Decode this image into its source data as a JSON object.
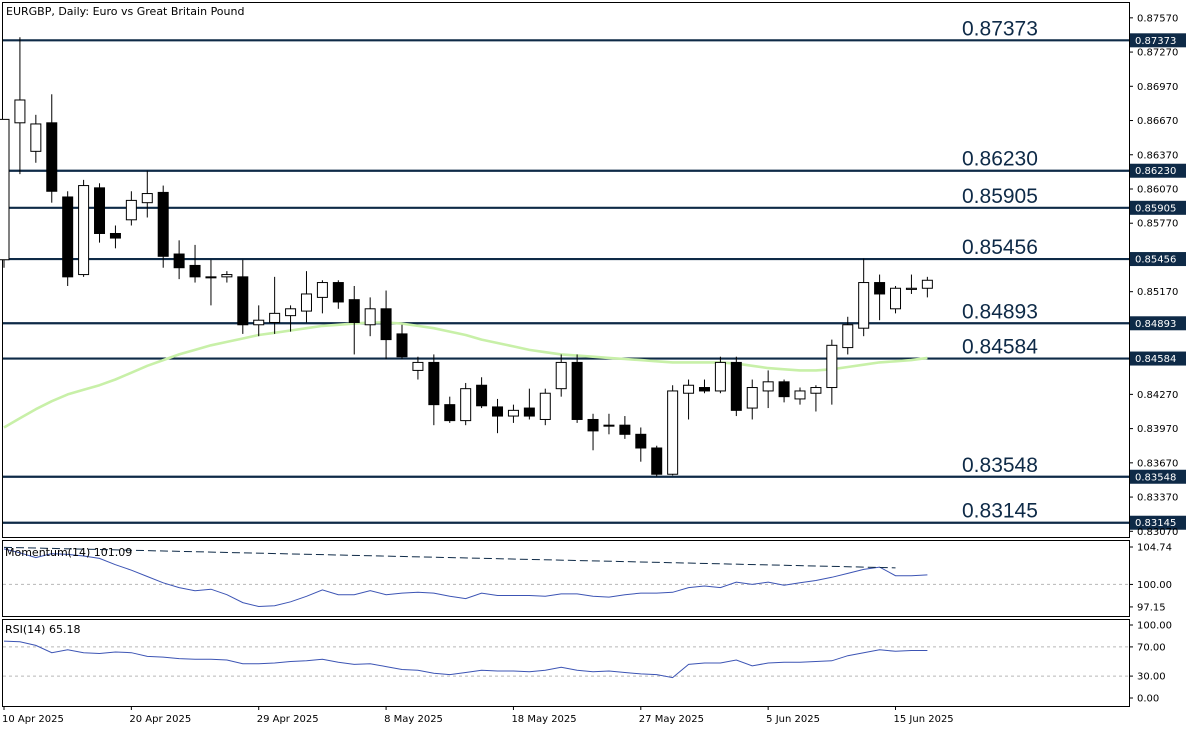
{
  "header": {
    "title": "EURGBP, Daily:  Euro vs Great Britain Pound"
  },
  "colors": {
    "level_line": "#0e2a47",
    "ma_line": "#c8f0a8",
    "indicator_line": "#3c54b4",
    "bull_body": "#ffffff",
    "bear_body": "#000000"
  },
  "price_axis": {
    "ticks": [
      "0.87570",
      "0.87270",
      "0.86970",
      "0.86670",
      "0.86370",
      "0.86070",
      "0.85770",
      "0.85170",
      "0.84270",
      "0.83970",
      "0.83670",
      "0.83370",
      "0.83070"
    ]
  },
  "levels": [
    {
      "value": 0.87373,
      "label": "0.87373",
      "tag": "0.87373"
    },
    {
      "value": 0.8623,
      "label": "0.86230",
      "tag": "0.86230"
    },
    {
      "value": 0.85905,
      "label": "0.85905",
      "tag": "0.85905"
    },
    {
      "value": 0.85456,
      "label": "0.85456",
      "tag": "0.85456"
    },
    {
      "value": 0.84893,
      "label": "0.84893",
      "tag": "0.84893"
    },
    {
      "value": 0.84584,
      "label": "0.84584",
      "tag": "0.84584"
    },
    {
      "value": 0.83548,
      "label": "0.83548",
      "tag": "0.83548"
    },
    {
      "value": 0.83145,
      "label": "0.83145",
      "tag": "0.83145"
    }
  ],
  "momentum": {
    "label": "Momentum(14) 101.09",
    "ticks": [
      "104.74",
      "100.00",
      "97.15"
    ]
  },
  "rsi": {
    "label": "RSI(14) 65.18",
    "ticks": [
      "100.00",
      "70.00",
      "30.00",
      "0.00"
    ]
  },
  "time_axis": {
    "labels": [
      "10 Apr 2025",
      "20 Apr 2025",
      "29 Apr 2025",
      "8 May 2025",
      "18 May 2025",
      "27 May 2025",
      "5 Jun 2025",
      "15 Jun 2025"
    ]
  },
  "chart_data": {
    "type": "candlestick",
    "symbol": "EURGBP",
    "timeframe": "Daily",
    "ylim": [
      0.8301,
      0.8775
    ],
    "candles": [
      {
        "o": 0.8545,
        "h": 0.8668,
        "l": 0.8538,
        "c": 0.8668
      },
      {
        "o": 0.8665,
        "h": 0.874,
        "l": 0.862,
        "c": 0.8685
      },
      {
        "o": 0.864,
        "h": 0.8672,
        "l": 0.863,
        "c": 0.8664
      },
      {
        "o": 0.8665,
        "h": 0.869,
        "l": 0.8595,
        "c": 0.8605
      },
      {
        "o": 0.86,
        "h": 0.8605,
        "l": 0.8522,
        "c": 0.853
      },
      {
        "o": 0.8532,
        "h": 0.8615,
        "l": 0.853,
        "c": 0.861
      },
      {
        "o": 0.8608,
        "h": 0.8612,
        "l": 0.856,
        "c": 0.8568
      },
      {
        "o": 0.8568,
        "h": 0.8575,
        "l": 0.8555,
        "c": 0.8564
      },
      {
        "o": 0.858,
        "h": 0.8605,
        "l": 0.8575,
        "c": 0.8597
      },
      {
        "o": 0.8595,
        "h": 0.8623,
        "l": 0.8582,
        "c": 0.8603
      },
      {
        "o": 0.8604,
        "h": 0.861,
        "l": 0.8538,
        "c": 0.8548
      },
      {
        "o": 0.855,
        "h": 0.8562,
        "l": 0.8528,
        "c": 0.8538
      },
      {
        "o": 0.854,
        "h": 0.8558,
        "l": 0.8525,
        "c": 0.853
      },
      {
        "o": 0.853,
        "h": 0.8545,
        "l": 0.8505,
        "c": 0.853
      },
      {
        "o": 0.853,
        "h": 0.8535,
        "l": 0.8525,
        "c": 0.8532
      },
      {
        "o": 0.853,
        "h": 0.8545,
        "l": 0.848,
        "c": 0.8488
      },
      {
        "o": 0.8488,
        "h": 0.8505,
        "l": 0.8478,
        "c": 0.8492
      },
      {
        "o": 0.849,
        "h": 0.853,
        "l": 0.848,
        "c": 0.8498
      },
      {
        "o": 0.8496,
        "h": 0.8505,
        "l": 0.8482,
        "c": 0.8502
      },
      {
        "o": 0.85,
        "h": 0.8535,
        "l": 0.849,
        "c": 0.8515
      },
      {
        "o": 0.8512,
        "h": 0.8527,
        "l": 0.8498,
        "c": 0.8525
      },
      {
        "o": 0.8525,
        "h": 0.8527,
        "l": 0.8502,
        "c": 0.8508
      },
      {
        "o": 0.851,
        "h": 0.8522,
        "l": 0.8462,
        "c": 0.849
      },
      {
        "o": 0.8488,
        "h": 0.8512,
        "l": 0.8478,
        "c": 0.8502
      },
      {
        "o": 0.8502,
        "h": 0.8518,
        "l": 0.8458,
        "c": 0.8475
      },
      {
        "o": 0.848,
        "h": 0.8488,
        "l": 0.8458,
        "c": 0.846
      },
      {
        "o": 0.8448,
        "h": 0.846,
        "l": 0.844,
        "c": 0.8455
      },
      {
        "o": 0.8455,
        "h": 0.8462,
        "l": 0.84,
        "c": 0.8418
      },
      {
        "o": 0.8418,
        "h": 0.8425,
        "l": 0.8402,
        "c": 0.8404
      },
      {
        "o": 0.8404,
        "h": 0.8437,
        "l": 0.84,
        "c": 0.8432
      },
      {
        "o": 0.8435,
        "h": 0.8442,
        "l": 0.8415,
        "c": 0.8417
      },
      {
        "o": 0.8416,
        "h": 0.8423,
        "l": 0.8393,
        "c": 0.8408
      },
      {
        "o": 0.8408,
        "h": 0.8418,
        "l": 0.8402,
        "c": 0.8413
      },
      {
        "o": 0.8415,
        "h": 0.8432,
        "l": 0.8405,
        "c": 0.8408
      },
      {
        "o": 0.8405,
        "h": 0.8432,
        "l": 0.84,
        "c": 0.8428
      },
      {
        "o": 0.8432,
        "h": 0.8462,
        "l": 0.8425,
        "c": 0.8455
      },
      {
        "o": 0.8455,
        "h": 0.8462,
        "l": 0.8402,
        "c": 0.8405
      },
      {
        "o": 0.8405,
        "h": 0.841,
        "l": 0.8378,
        "c": 0.8395
      },
      {
        "o": 0.84,
        "h": 0.841,
        "l": 0.8392,
        "c": 0.84
      },
      {
        "o": 0.84,
        "h": 0.8408,
        "l": 0.8388,
        "c": 0.8392
      },
      {
        "o": 0.8392,
        "h": 0.8398,
        "l": 0.8368,
        "c": 0.838
      },
      {
        "o": 0.838,
        "h": 0.8382,
        "l": 0.8355,
        "c": 0.8357
      },
      {
        "o": 0.8357,
        "h": 0.8435,
        "l": 0.8356,
        "c": 0.843
      },
      {
        "o": 0.8428,
        "h": 0.844,
        "l": 0.8405,
        "c": 0.8435
      },
      {
        "o": 0.8433,
        "h": 0.844,
        "l": 0.8428,
        "c": 0.843
      },
      {
        "o": 0.843,
        "h": 0.846,
        "l": 0.8428,
        "c": 0.8455
      },
      {
        "o": 0.8455,
        "h": 0.846,
        "l": 0.8408,
        "c": 0.8413
      },
      {
        "o": 0.8415,
        "h": 0.844,
        "l": 0.8405,
        "c": 0.8433
      },
      {
        "o": 0.843,
        "h": 0.8448,
        "l": 0.8415,
        "c": 0.8438
      },
      {
        "o": 0.8438,
        "h": 0.844,
        "l": 0.842,
        "c": 0.8425
      },
      {
        "o": 0.8423,
        "h": 0.8433,
        "l": 0.8418,
        "c": 0.843
      },
      {
        "o": 0.8428,
        "h": 0.8435,
        "l": 0.8412,
        "c": 0.8433
      },
      {
        "o": 0.8433,
        "h": 0.8475,
        "l": 0.8418,
        "c": 0.847
      },
      {
        "o": 0.8468,
        "h": 0.8495,
        "l": 0.8462,
        "c": 0.8488
      },
      {
        "o": 0.8485,
        "h": 0.8546,
        "l": 0.8478,
        "c": 0.8525
      },
      {
        "o": 0.8525,
        "h": 0.8532,
        "l": 0.8492,
        "c": 0.8515
      },
      {
        "o": 0.8502,
        "h": 0.8522,
        "l": 0.8498,
        "c": 0.852
      },
      {
        "o": 0.8519,
        "h": 0.8532,
        "l": 0.8515,
        "c": 0.852
      },
      {
        "o": 0.852,
        "h": 0.853,
        "l": 0.8512,
        "c": 0.8527
      }
    ],
    "ma": [
      0.8398,
      0.8406,
      0.8414,
      0.8421,
      0.8427,
      0.8431,
      0.8435,
      0.844,
      0.8446,
      0.8452,
      0.8457,
      0.8462,
      0.8466,
      0.847,
      0.8473,
      0.8476,
      0.8479,
      0.8481,
      0.8483,
      0.8485,
      0.8487,
      0.8488,
      0.8489,
      0.849,
      0.849,
      0.8489,
      0.8487,
      0.8485,
      0.8482,
      0.8479,
      0.8475,
      0.8472,
      0.8469,
      0.8466,
      0.8464,
      0.8462,
      0.8461,
      0.846,
      0.8459,
      0.8458,
      0.8457,
      0.8456,
      0.8455,
      0.8455,
      0.8455,
      0.8455,
      0.8454,
      0.8452,
      0.845,
      0.8449,
      0.8448,
      0.8448,
      0.8449,
      0.8451,
      0.8453,
      0.8455,
      0.8456,
      0.8457,
      0.8459
    ],
    "momentum": [
      104.5,
      104.0,
      103.4,
      103.9,
      103.8,
      103.6,
      103.3,
      102.5,
      101.8,
      101.0,
      100.2,
      99.6,
      99.2,
      99.4,
      98.7,
      97.7,
      97.2,
      97.3,
      97.8,
      98.5,
      99.3,
      98.7,
      98.7,
      99.2,
      98.7,
      98.9,
      99.0,
      98.9,
      98.5,
      98.2,
      98.9,
      98.6,
      98.6,
      98.6,
      98.5,
      98.8,
      98.8,
      98.5,
      98.4,
      98.7,
      98.9,
      98.9,
      99.0,
      99.6,
      99.8,
      99.6,
      100.3,
      100.0,
      100.3,
      99.9,
      100.2,
      100.5,
      100.9,
      101.4,
      101.9,
      102.2,
      101.1,
      101.1,
      101.2
    ],
    "momentum_trend": [
      [
        0,
        104.7
      ],
      [
        56,
        102.1
      ]
    ],
    "rsi": [
      78,
      77,
      72,
      62,
      66,
      62,
      61,
      63,
      62,
      57,
      56,
      54,
      53,
      53,
      52,
      47,
      47,
      48,
      50,
      51,
      53,
      49,
      46,
      47,
      43,
      39,
      38,
      34,
      32,
      35,
      38,
      37,
      37,
      36,
      38,
      42,
      38,
      36,
      37,
      35,
      33,
      32,
      28,
      46,
      48,
      48,
      52,
      44,
      48,
      49,
      49,
      50,
      51,
      58,
      62,
      66,
      64,
      65,
      65
    ],
    "momentum_ylim": [
      96.0,
      105.5
    ],
    "rsi_ylim": [
      0,
      100
    ]
  }
}
